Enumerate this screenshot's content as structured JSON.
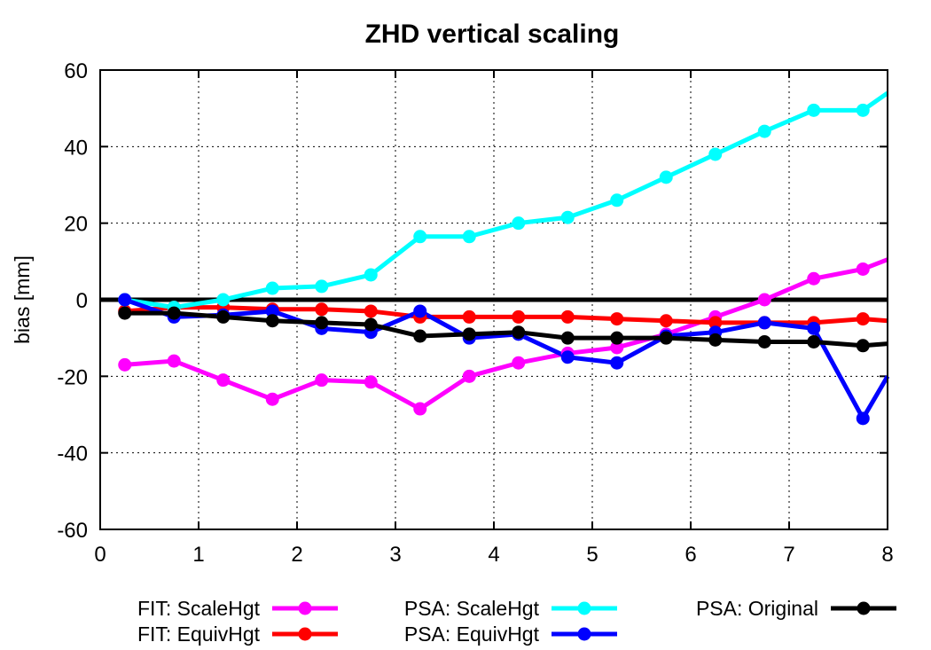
{
  "chart_data": {
    "type": "line",
    "title": "ZHD vertical scaling",
    "xlabel": "",
    "ylabel": "bias [mm]",
    "xlim": [
      0,
      8
    ],
    "ylim": [
      -60,
      60
    ],
    "xticks": [
      "0",
      "1",
      "2",
      "3",
      "4",
      "5",
      "6",
      "7",
      "8"
    ],
    "yticks": [
      "-60",
      "-40",
      "-20",
      "0",
      "20",
      "40",
      "60"
    ],
    "grid": true,
    "legend_position": "bottom",
    "x": [
      0.25,
      0.75,
      1.25,
      1.75,
      2.25,
      2.75,
      3.25,
      3.75,
      4.25,
      4.75,
      5.25,
      5.75,
      6.25,
      6.75,
      7.25,
      7.75,
      8.0
    ],
    "series": [
      {
        "name": "FIT: ScaleHgt",
        "color": "#ff00ff",
        "values": [
          -17,
          -16,
          -21,
          -26,
          -21,
          -21.5,
          -28.5,
          -20,
          -16.5,
          -14,
          -12.5,
          -9,
          -4.5,
          0,
          5.5,
          8,
          10.5
        ]
      },
      {
        "name": "FIT: EquivHgt",
        "color": "#ff0000",
        "values": [
          -3,
          -2,
          -2,
          -2.5,
          -2.5,
          -3,
          -4.5,
          -4.5,
          -4.5,
          -4.5,
          -5,
          -5.5,
          -6,
          -6,
          -6,
          -5,
          -5.5
        ]
      },
      {
        "name": "PSA: ScaleHgt",
        "color": "#00ffff",
        "values": [
          0,
          -2,
          0,
          3,
          3.5,
          6.5,
          16.5,
          16.5,
          20,
          21.5,
          26,
          32,
          38,
          44,
          49.5,
          49.5,
          54
        ]
      },
      {
        "name": "PSA: EquivHgt",
        "color": "#0000ff",
        "values": [
          0,
          -4.5,
          -4,
          -3,
          -7.5,
          -8.5,
          -3,
          -10,
          -9,
          -15,
          -16.5,
          -9.5,
          -8.5,
          -6,
          -7.5,
          -31,
          -20
        ]
      },
      {
        "name": "PSA: Original",
        "color": "#000000",
        "values": [
          -3.5,
          -3.5,
          -4.5,
          -5.5,
          -6,
          -6.5,
          -9.5,
          -9,
          -8.5,
          -10,
          -10,
          -10,
          -10.5,
          -11,
          -11,
          -12,
          -11.5
        ]
      }
    ],
    "zero_line": 0
  }
}
